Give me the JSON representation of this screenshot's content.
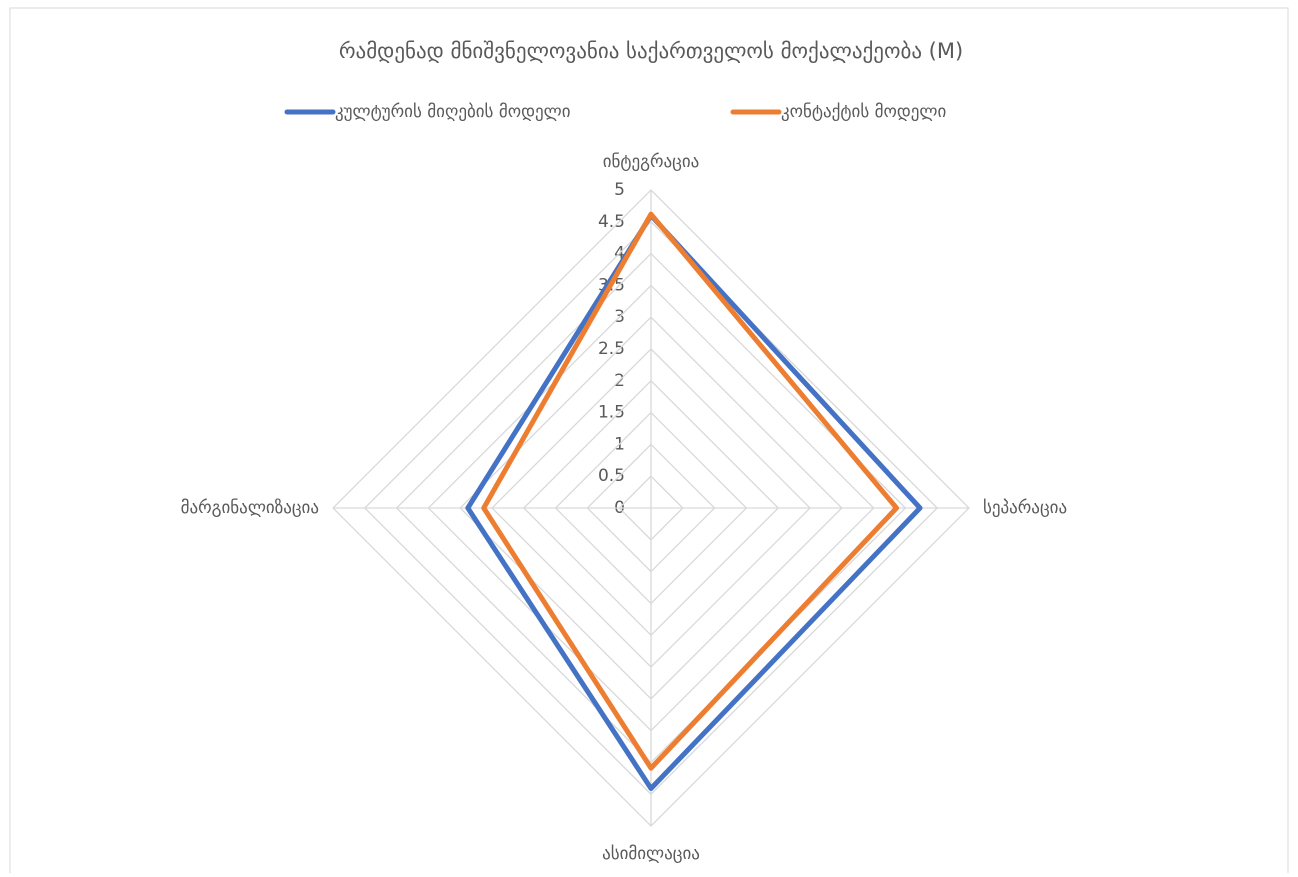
{
  "chart_data": {
    "type": "radar",
    "title": "რამდენად მნიშვნელოვანია საქართველოს მოქალაქეობა (M)",
    "categories": [
      "ინტეგრაცია",
      "სეპარაცია",
      "ასიმილაცია",
      "მარგინალიზაცია"
    ],
    "series": [
      {
        "name": "კულტურის მიღების მოდელი",
        "color": "#4472c4",
        "values": [
          4.6,
          4.23,
          4.41,
          2.88
        ]
      },
      {
        "name": "კონტაქტის მოდელი",
        "color": "#ed7d31",
        "values": [
          4.62,
          3.86,
          4.09,
          2.63
        ]
      }
    ],
    "rlim": [
      0,
      5
    ],
    "rticks": [
      0,
      0.5,
      1,
      1.5,
      2,
      2.5,
      3,
      3.5,
      4,
      4.5,
      5
    ],
    "grid": true,
    "legend": "top"
  }
}
